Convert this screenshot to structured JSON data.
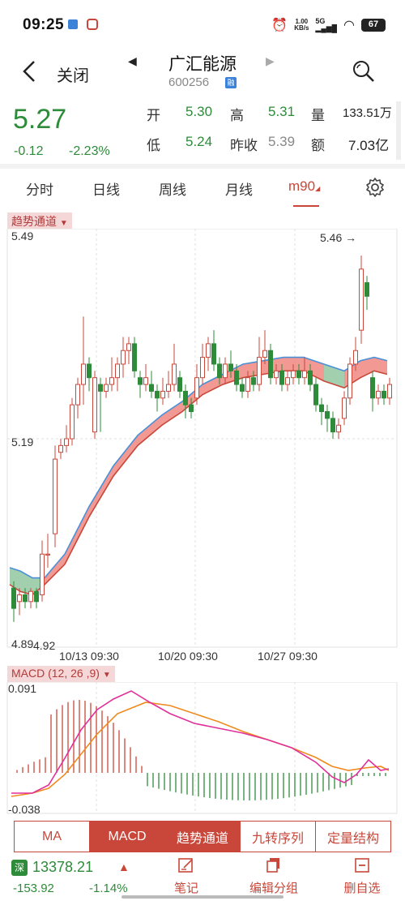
{
  "status": {
    "time": "09:25",
    "speed_top": "1.00",
    "speed_bottom": "KB/s",
    "signal": "5G",
    "battery": "67"
  },
  "header": {
    "close_label": "关闭",
    "stock_name": "广汇能源",
    "stock_code": "600256",
    "badge": "融"
  },
  "quote": {
    "price": "5.27",
    "change": "-0.12",
    "change_pct": "-2.23%",
    "open_label": "开",
    "open": "5.30",
    "high_label": "高",
    "high": "5.31",
    "volume_label": "量",
    "volume": "133.51万",
    "low_label": "低",
    "low": "5.24",
    "prev_close_label": "昨收",
    "prev_close": "5.39",
    "amount_label": "额",
    "amount": "7.03亿"
  },
  "tabs": [
    {
      "label": "分时"
    },
    {
      "label": "日线"
    },
    {
      "label": "周线"
    },
    {
      "label": "月线"
    },
    {
      "label": "m90"
    }
  ],
  "main_chart": {
    "indicator": "趋势通道",
    "y_top": "5.49",
    "y_mid": "5.19",
    "y_bottom_left": "4.89",
    "y_bottom_right": "4.92",
    "max_annotation": "5.46 →",
    "x_labels": [
      "10/13 09:30",
      "10/20 09:30",
      "10/27 09:30"
    ]
  },
  "macd_chart": {
    "label": "MACD (12, 26 ,9)",
    "y_top": "0.091",
    "y_bottom": "-0.038"
  },
  "indicators": [
    {
      "label": "MA"
    },
    {
      "label": "MACD"
    },
    {
      "label": "趋势通道"
    },
    {
      "label": "九转序列"
    },
    {
      "label": "定量结构"
    }
  ],
  "bottom": {
    "index_badge": "深",
    "index_value": "13378.21",
    "index_change": "-153.92",
    "index_pct": "-1.14%",
    "notes_label": "笔记",
    "edit_group_label": "编辑分组",
    "remove_label": "删自选"
  },
  "colors": {
    "up": "#c8473a",
    "down": "#2e8b3a",
    "channel_up": "#ee7f77",
    "channel_down": "#8bc39a",
    "ma_line": "#4a90d9",
    "dif": "#e0309a",
    "dea": "#ee8a1e"
  }
}
